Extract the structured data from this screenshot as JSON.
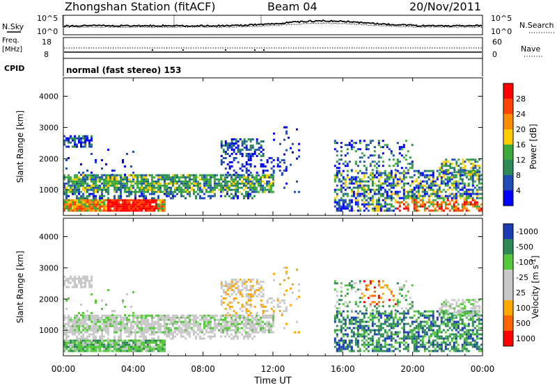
{
  "header": {
    "title": "Zhongshan Station (fitACF)",
    "beam": "Beam 04",
    "date": "20/Nov/2011"
  },
  "top_strip": {
    "left_label": "N.Sky",
    "right_label": "N.Search",
    "ticks_left": [
      "10^5",
      "10^0"
    ],
    "ticks_right": [
      "10^5",
      "10^0"
    ]
  },
  "freq_strip": {
    "left_label_1": "Freq.",
    "left_label_2": "[MHz]",
    "right_label": "Nave",
    "ticks_left": [
      "18",
      "8"
    ],
    "ticks_right": [
      "60",
      "0"
    ]
  },
  "cpid": {
    "label": "CPID",
    "text": "normal (fast stereo) 153"
  },
  "colors": {
    "power": [
      "#0000ff",
      "#1f4fb4",
      "#2e8b57",
      "#3caa3c",
      "#ffcc00",
      "#ff8c00",
      "#ff4500",
      "#ff0000"
    ],
    "velocity": [
      "#ff0000",
      "#ff6400",
      "#ffa500",
      "#c8c8c8",
      "#c8c8c8",
      "#55c83c",
      "#2e8b57",
      "#1c3cb4"
    ]
  },
  "chart_data": [
    {
      "type": "heatmap",
      "name": "power",
      "ylabel": "Slant Range [km]",
      "yticks": [
        1000,
        2000,
        3000,
        4000
      ],
      "ylim": [
        180,
        4590
      ],
      "xticks": [
        "00:00",
        "04:00",
        "08:00",
        "12:00",
        "16:00",
        "20:00",
        "00:00"
      ],
      "xlim": [
        0,
        24
      ],
      "colorbar_label": "Power [dB]",
      "colorbar_ticks": [
        "4",
        "8",
        "12",
        "16",
        "20",
        "24",
        "28"
      ]
    },
    {
      "type": "heatmap",
      "name": "velocity",
      "ylabel": "Slant Range [km]",
      "yticks": [
        1000,
        2000,
        3000,
        4000
      ],
      "ylim": [
        180,
        4590
      ],
      "xticks": [
        "00:00",
        "04:00",
        "08:00",
        "12:00",
        "16:00",
        "20:00",
        "00:00"
      ],
      "xlim": [
        0,
        24
      ],
      "xlabel": "Time UT",
      "colorbar_label": "Velocity [m s",
      "colorbar_label_sup": "-1",
      "colorbar_label_end": "]",
      "colorbar_ticks": [
        "1000",
        "500",
        "100",
        "25",
        "-25",
        "-100",
        "-500",
        "-1000"
      ]
    }
  ]
}
